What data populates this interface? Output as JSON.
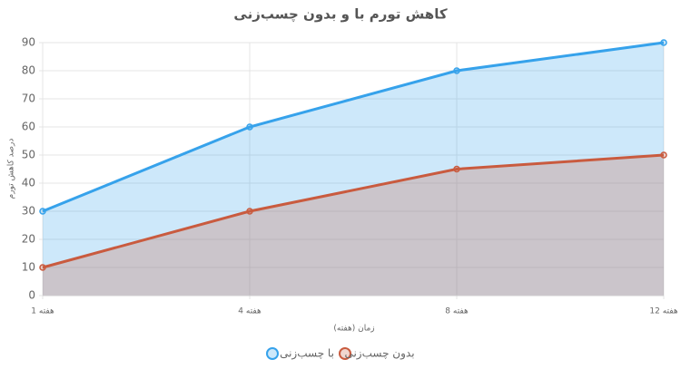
{
  "chart_data": {
    "type": "area",
    "title": "کاهش تورم با و بدون چسب‌زنی",
    "x_label": "زمان (هفته)",
    "y_label": "درصد کاهش تورم",
    "categories": [
      "هفته 1",
      "هفته 4",
      "هفته 8",
      "هفته 12"
    ],
    "series": [
      {
        "name": "با چسب‌زنی",
        "color": "#36a2eb",
        "values": [
          30,
          60,
          80,
          90
        ]
      },
      {
        "name": "بدون چسب‌زنی",
        "color": "#c95b3f",
        "values": [
          10,
          30,
          45,
          50
        ]
      }
    ],
    "ylim": [
      0,
      90
    ],
    "yticks": [
      0,
      10,
      20,
      30,
      40,
      50,
      60,
      70,
      80,
      90
    ],
    "grid": true,
    "legend": "bottom"
  }
}
